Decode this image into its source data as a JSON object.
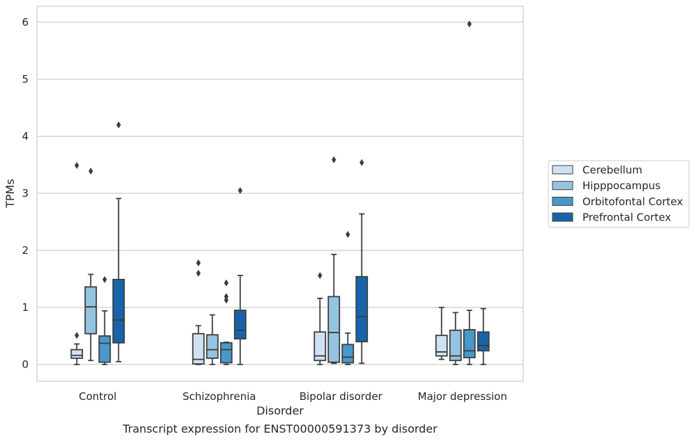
{
  "chart_data": {
    "type": "box",
    "title": "Transcript expression for ENST00000591373 by disorder",
    "xlabel": "Disorder",
    "ylabel": "TPMs",
    "ylim": [
      -0.3,
      6.28
    ],
    "yticks": [
      0,
      1,
      2,
      3,
      4,
      5,
      6
    ],
    "grid": true,
    "legend_position": "right",
    "categories": [
      "Control",
      "Schizophrenia",
      "Bipolar disorder",
      "Major depression"
    ],
    "series": [
      {
        "name": "Cerebellum",
        "color": "#d0e1f2",
        "boxes": [
          {
            "whislo": 0.0,
            "q1": 0.11,
            "med": 0.16,
            "q3": 0.26,
            "whishi": 0.36,
            "fliers": [
              0.51,
              3.49
            ]
          },
          {
            "whislo": 0.0,
            "q1": 0.01,
            "med": 0.09,
            "q3": 0.54,
            "whishi": 0.68,
            "fliers": [
              1.6,
              1.78
            ]
          },
          {
            "whislo": 0.0,
            "q1": 0.07,
            "med": 0.15,
            "q3": 0.57,
            "whishi": 1.16,
            "fliers": [
              1.56
            ]
          },
          {
            "whislo": 0.09,
            "q1": 0.15,
            "med": 0.22,
            "q3": 0.51,
            "whishi": 1.0,
            "fliers": []
          }
        ]
      },
      {
        "name": "Hipppocampus",
        "color": "#94c4df",
        "boxes": [
          {
            "whislo": 0.07,
            "q1": 0.54,
            "med": 1.01,
            "q3": 1.36,
            "whishi": 1.58,
            "fliers": [
              3.39
            ]
          },
          {
            "whislo": 0.0,
            "q1": 0.11,
            "med": 0.26,
            "q3": 0.52,
            "whishi": 0.87,
            "fliers": []
          },
          {
            "whislo": 0.02,
            "q1": 0.04,
            "med": 0.56,
            "q3": 1.19,
            "whishi": 1.93,
            "fliers": [
              3.59
            ]
          },
          {
            "whislo": 0.0,
            "q1": 0.07,
            "med": 0.15,
            "q3": 0.6,
            "whishi": 0.91,
            "fliers": []
          }
        ]
      },
      {
        "name": "Orbitofontal Cortex",
        "color": "#4a98c9",
        "boxes": [
          {
            "whislo": 0.0,
            "q1": 0.04,
            "med": 0.37,
            "q3": 0.5,
            "whishi": 0.94,
            "fliers": [
              1.49
            ]
          },
          {
            "whislo": 0.0,
            "q1": 0.03,
            "med": 0.26,
            "q3": 0.38,
            "whishi": 0.39,
            "fliers": [
              1.13,
              1.19,
              1.43
            ]
          },
          {
            "whislo": 0.0,
            "q1": 0.03,
            "med": 0.13,
            "q3": 0.35,
            "whishi": 0.55,
            "fliers": [
              2.28
            ]
          },
          {
            "whislo": 0.0,
            "q1": 0.12,
            "med": 0.24,
            "q3": 0.61,
            "whishi": 0.95,
            "fliers": [
              5.97
            ]
          }
        ]
      },
      {
        "name": "Prefrontal Cortex",
        "color": "#1764ab",
        "boxes": [
          {
            "whislo": 0.05,
            "q1": 0.38,
            "med": 0.78,
            "q3": 1.49,
            "whishi": 2.91,
            "fliers": [
              4.2
            ]
          },
          {
            "whislo": 0.0,
            "q1": 0.45,
            "med": 0.6,
            "q3": 0.95,
            "whishi": 1.56,
            "fliers": [
              3.05
            ]
          },
          {
            "whislo": 0.02,
            "q1": 0.4,
            "med": 0.84,
            "q3": 1.54,
            "whishi": 2.64,
            "fliers": [
              3.54
            ]
          },
          {
            "whislo": 0.0,
            "q1": 0.24,
            "med": 0.33,
            "q3": 0.57,
            "whishi": 0.98,
            "fliers": []
          }
        ]
      }
    ]
  }
}
